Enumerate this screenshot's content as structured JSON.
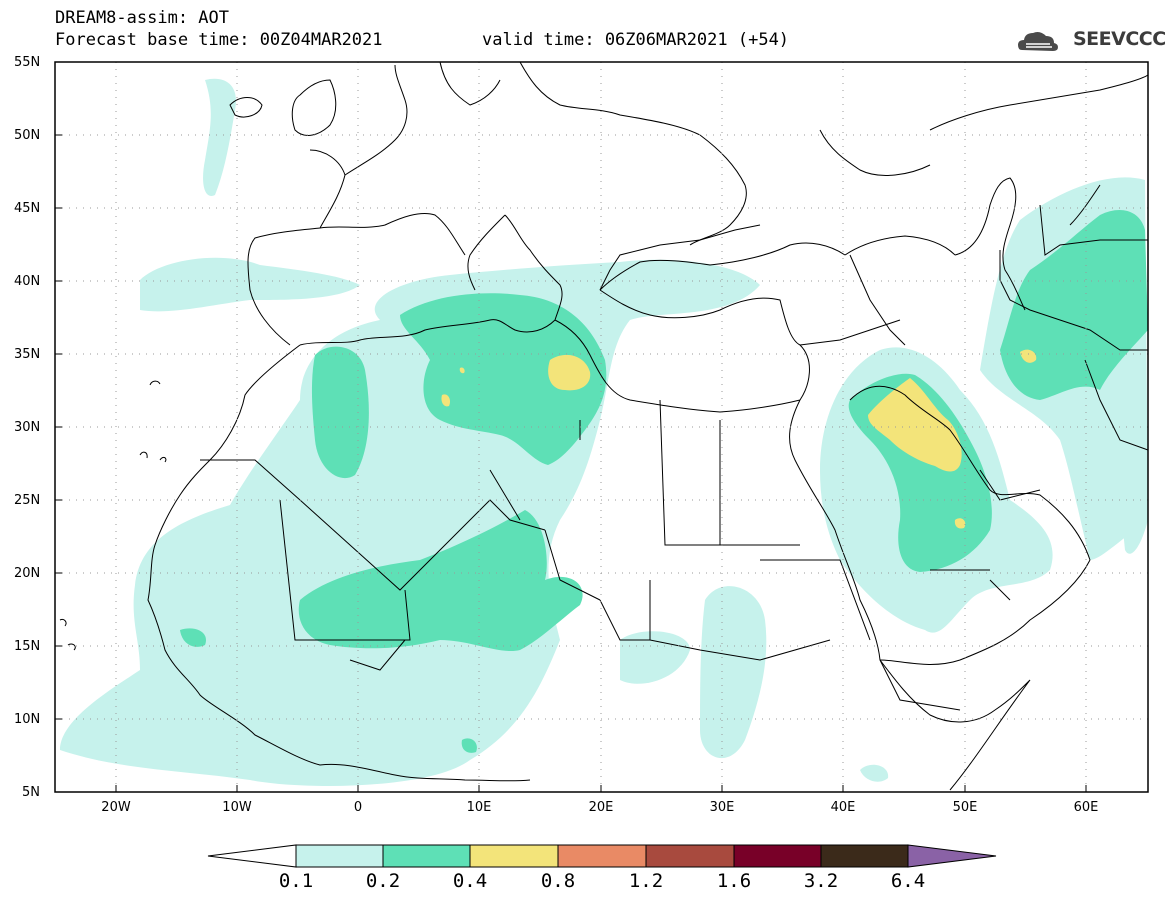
{
  "header": {
    "line1": "DREAM8-assim: AOT",
    "line2": "Forecast base time: 00Z04MAR2021",
    "line3": "valid time: 06Z06MAR2021 (+54)"
  },
  "logo": {
    "text": "SEEVCCC",
    "icon": "cloud-icon"
  },
  "map": {
    "lat_labels": [
      "55N",
      "50N",
      "45N",
      "40N",
      "35N",
      "30N",
      "25N",
      "20N",
      "15N",
      "10N",
      "5N"
    ],
    "lon_labels": [
      "20W",
      "10W",
      "0",
      "10E",
      "20E",
      "30E",
      "40E",
      "50E",
      "60E"
    ],
    "lon_range": [
      -25,
      65
    ],
    "lat_range": [
      5,
      55
    ],
    "grid": "dotted"
  },
  "colorbar": {
    "labels": [
      "0.1",
      "0.2",
      "0.4",
      "0.8",
      "1.2",
      "1.6",
      "3.2",
      "6.4"
    ],
    "colors": [
      "#ffffff",
      "#c6f2ec",
      "#5ee0b6",
      "#f3e47a",
      "#e98a65",
      "#a84a3e",
      "#780028",
      "#3b2a1a",
      "#8a62a6"
    ]
  },
  "legend_colors": {
    "level1": "#c6f2ec",
    "level2": "#5ee0b6",
    "level3": "#f3e47a"
  }
}
